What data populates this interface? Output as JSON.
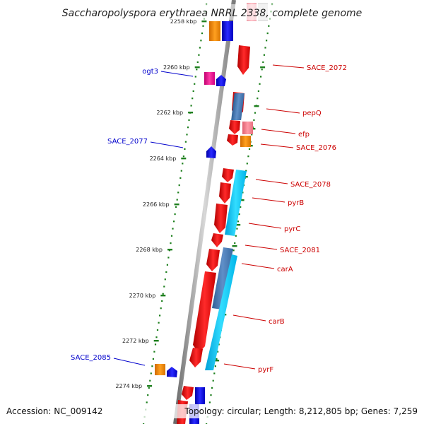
{
  "title": "Saccharopolyspora erythraea NRRL 2338, complete genome",
  "accession": "Accession: NC_009142",
  "topology": "Topology: circular; Length: 8,212,805 bp; Genes: 7,259",
  "colors": {
    "forward_gene": "#ff1a1a",
    "reverse_gene": "#1a1aff",
    "forward_label": "#cc0000",
    "reverse_label": "#0000cc",
    "backbone": "#8c8c8c",
    "tick": "#1d7f1d"
  },
  "kbp_ticks": [
    {
      "label": "2258 kbp"
    },
    {
      "label": "2260 kbp"
    },
    {
      "label": "2262 kbp"
    },
    {
      "label": "2264 kbp"
    },
    {
      "label": "2266 kbp"
    },
    {
      "label": "2268 kbp"
    },
    {
      "label": "2270 kbp"
    },
    {
      "label": "2272 kbp"
    },
    {
      "label": "2274 kbp"
    }
  ],
  "gene_labels": [
    {
      "name": "SACE_2072",
      "strand": "forward"
    },
    {
      "name": "ogt3",
      "strand": "reverse"
    },
    {
      "name": "pepQ",
      "strand": "forward"
    },
    {
      "name": "efp",
      "strand": "forward"
    },
    {
      "name": "SACE_2077",
      "strand": "reverse"
    },
    {
      "name": "SACE_2076",
      "strand": "forward"
    },
    {
      "name": "SACE_2078",
      "strand": "forward"
    },
    {
      "name": "pyrB",
      "strand": "forward"
    },
    {
      "name": "pyrC",
      "strand": "forward"
    },
    {
      "name": "SACE_2081",
      "strand": "forward"
    },
    {
      "name": "carA",
      "strand": "forward"
    },
    {
      "name": "carB",
      "strand": "forward"
    },
    {
      "name": "SACE_2085",
      "strand": "reverse"
    },
    {
      "name": "pyrF",
      "strand": "forward"
    }
  ]
}
